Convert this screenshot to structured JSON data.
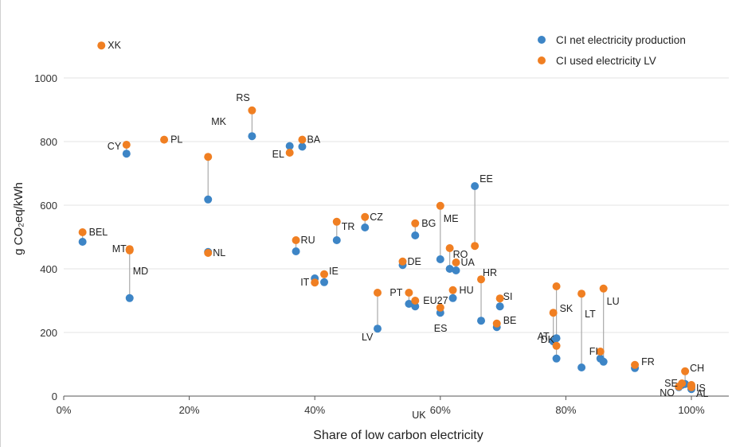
{
  "chart_data": {
    "type": "scatter",
    "title": "",
    "xlabel": "Share of low carbon electricity",
    "ylabel": "g CO₂eq/kWh",
    "xlim": [
      0,
      1.0
    ],
    "ylim": [
      0,
      1100
    ],
    "x_ticks": [
      "0%",
      "20%",
      "40%",
      "60%",
      "80%",
      "100%"
    ],
    "y_ticks": [
      "0",
      "200",
      "400",
      "600",
      "800",
      "1000"
    ],
    "grid": "horizontal",
    "legend_position": "top-right",
    "colors": {
      "net": "#3D85C6",
      "used": "#F07F22",
      "connector": "#aaaaaa"
    },
    "series": [
      {
        "name": "CI net electricity production",
        "key": "net"
      },
      {
        "name": "CI used electricity LV",
        "key": "used"
      }
    ],
    "points": [
      {
        "label": "XK",
        "x": 0.06,
        "net": null,
        "used": 1102
      },
      {
        "label": "BEL",
        "x": 0.03,
        "net": 485,
        "used": 515
      },
      {
        "label": "CY",
        "x": 0.1,
        "net": 762,
        "used": 790
      },
      {
        "label": "PL",
        "x": 0.16,
        "net": null,
        "used": 806
      },
      {
        "label": "MT",
        "x": 0.105,
        "net": 460,
        "used": 462
      },
      {
        "label": "MD",
        "x": 0.105,
        "net": 308,
        "used": 458
      },
      {
        "label": "MK",
        "x": 0.23,
        "net": 618,
        "used": 752
      },
      {
        "label": "NL",
        "x": 0.23,
        "net": 453,
        "used": 450
      },
      {
        "label": "RS",
        "x": 0.3,
        "net": 817,
        "used": 898
      },
      {
        "label": "EL",
        "x": 0.36,
        "net": 786,
        "used": 765
      },
      {
        "label": "BA",
        "x": 0.38,
        "net": 784,
        "used": 806
      },
      {
        "label": "RU",
        "x": 0.37,
        "net": 455,
        "used": 490
      },
      {
        "label": "IT",
        "x": 0.4,
        "net": 370,
        "used": 357
      },
      {
        "label": "IE",
        "x": 0.415,
        "net": 358,
        "used": 383
      },
      {
        "label": "TR",
        "x": 0.435,
        "net": 490,
        "used": 548
      },
      {
        "label": "CZ",
        "x": 0.48,
        "net": 530,
        "used": 563
      },
      {
        "label": "LV",
        "x": 0.5,
        "net": 212,
        "used": 325
      },
      {
        "label": "DE",
        "x": 0.54,
        "net": 412,
        "used": 423
      },
      {
        "label": "BG",
        "x": 0.56,
        "net": 505,
        "used": 543
      },
      {
        "label": "PT",
        "x": 0.55,
        "net": 290,
        "used": 325
      },
      {
        "label": "EU27",
        "x": 0.56,
        "net": 282,
        "used": 300
      },
      {
        "label": "UK",
        "x": 0.56,
        "net": null,
        "used": null
      },
      {
        "label": "ME",
        "x": 0.6,
        "net": 430,
        "used": 598
      },
      {
        "label": "ES",
        "x": 0.6,
        "net": 262,
        "used": 278
      },
      {
        "label": "RO",
        "x": 0.615,
        "net": 400,
        "used": 465
      },
      {
        "label": "UA",
        "x": 0.625,
        "net": 395,
        "used": 420
      },
      {
        "label": "HU",
        "x": 0.62,
        "net": 308,
        "used": 333
      },
      {
        "label": "EE",
        "x": 0.655,
        "net": 660,
        "used": 472
      },
      {
        "label": "HR",
        "x": 0.665,
        "net": 237,
        "used": 367
      },
      {
        "label": "SI",
        "x": 0.695,
        "net": 282,
        "used": 307
      },
      {
        "label": "BE",
        "x": 0.69,
        "net": 217,
        "used": 228
      },
      {
        "label": "SK",
        "x": 0.785,
        "net": 182,
        "used": 345
      },
      {
        "label": "AT",
        "x": 0.78,
        "net": 172,
        "used": 262
      },
      {
        "label": "DK",
        "x": 0.785,
        "net": 118,
        "used": 158
      },
      {
        "label": "LT",
        "x": 0.825,
        "net": 90,
        "used": 322
      },
      {
        "label": "LU",
        "x": 0.86,
        "net": 108,
        "used": 338
      },
      {
        "label": "FI",
        "x": 0.855,
        "net": 118,
        "used": 140
      },
      {
        "label": "FR",
        "x": 0.91,
        "net": 88,
        "used": 98
      },
      {
        "label": "CH",
        "x": 0.99,
        "net": 38,
        "used": 78
      },
      {
        "label": "IS",
        "x": 1.0,
        "net": 30,
        "used": 35
      },
      {
        "label": "SE",
        "x": 0.985,
        "net": 35,
        "used": 40
      },
      {
        "label": "NO",
        "x": 0.98,
        "net": 28,
        "used": 30
      },
      {
        "label": "AL",
        "x": 1.0,
        "net": 22,
        "used": 28
      }
    ]
  }
}
